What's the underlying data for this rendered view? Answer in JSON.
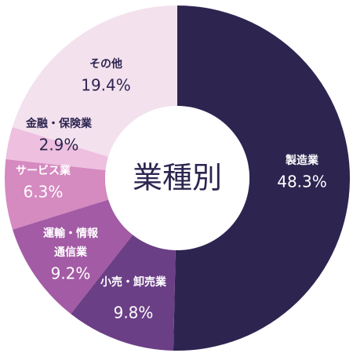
{
  "chart_data": {
    "type": "pie",
    "donut": true,
    "title": "業種別",
    "categories": [
      "製造業",
      "小売・卸売業",
      "運輸・情報\n通信業",
      "サービス業",
      "金融・保険業",
      "その他"
    ],
    "values": [
      48.3,
      9.8,
      9.2,
      6.3,
      2.9,
      19.4
    ],
    "value_labels": [
      "48.3%",
      "9.8%",
      "9.2%",
      "6.3%",
      "2.9%",
      "19.4%"
    ],
    "colors": [
      "#2d2550",
      "#6b3f86",
      "#a35ba5",
      "#d58ac0",
      "#eebfdf",
      "#f3e1ee"
    ]
  }
}
